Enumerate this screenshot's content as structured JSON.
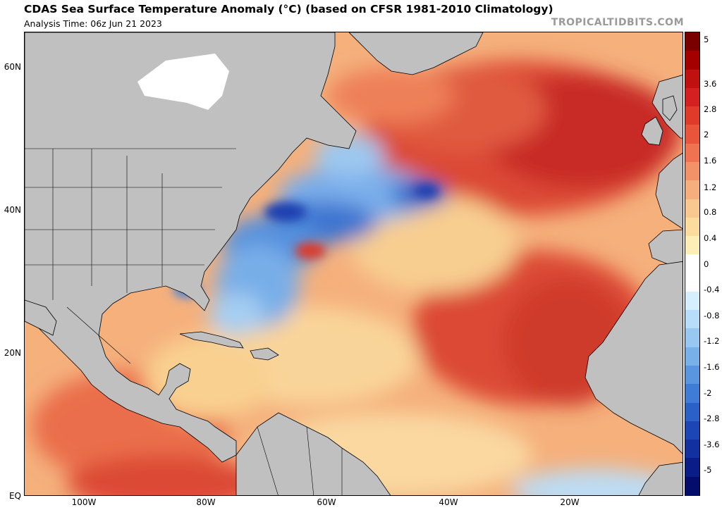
{
  "header": {
    "title": "CDAS Sea Surface Temperature Anomaly (°C) (based on CFSR 1981-2010 Climatology)",
    "analysis_time": "Analysis Time: 06z Jun 21 2023",
    "brand": "TROPICALTIDBITS.COM"
  },
  "map": {
    "lat_labels": [
      "60N",
      "40N",
      "20N",
      "EQ"
    ],
    "lon_labels": [
      "100W",
      "80W",
      "60W",
      "40W",
      "20W"
    ]
  },
  "colorbar": {
    "labels": [
      "5",
      "3.6",
      "2.8",
      "2",
      "1.6",
      "1.2",
      "0.8",
      "0.4",
      "0",
      "-0.4",
      "-0.8",
      "-1.2",
      "-1.6",
      "-2",
      "-2.8",
      "-3.6",
      "-5"
    ],
    "colors": [
      "#7a0000",
      "#a40000",
      "#c01010",
      "#d42020",
      "#e03a2a",
      "#e8553a",
      "#ef7350",
      "#f39268",
      "#f6ae7e",
      "#f9c890",
      "#fbdc9e",
      "#fdeeb8",
      "#ffffff",
      "#ffffff",
      "#d6efff",
      "#b8ddfa",
      "#98c8f2",
      "#78b0ea",
      "#5a96e0",
      "#3e7cd6",
      "#2a60c8",
      "#1c46b6",
      "#1230a0",
      "#0a1c88",
      "#040c6c"
    ]
  },
  "colors": {
    "land": "#c0c0c0",
    "border": "#000000",
    "ocean_warm": "#f2a070",
    "ocean_hot": "#d83a30",
    "ocean_cold": "#4a88dc"
  }
}
